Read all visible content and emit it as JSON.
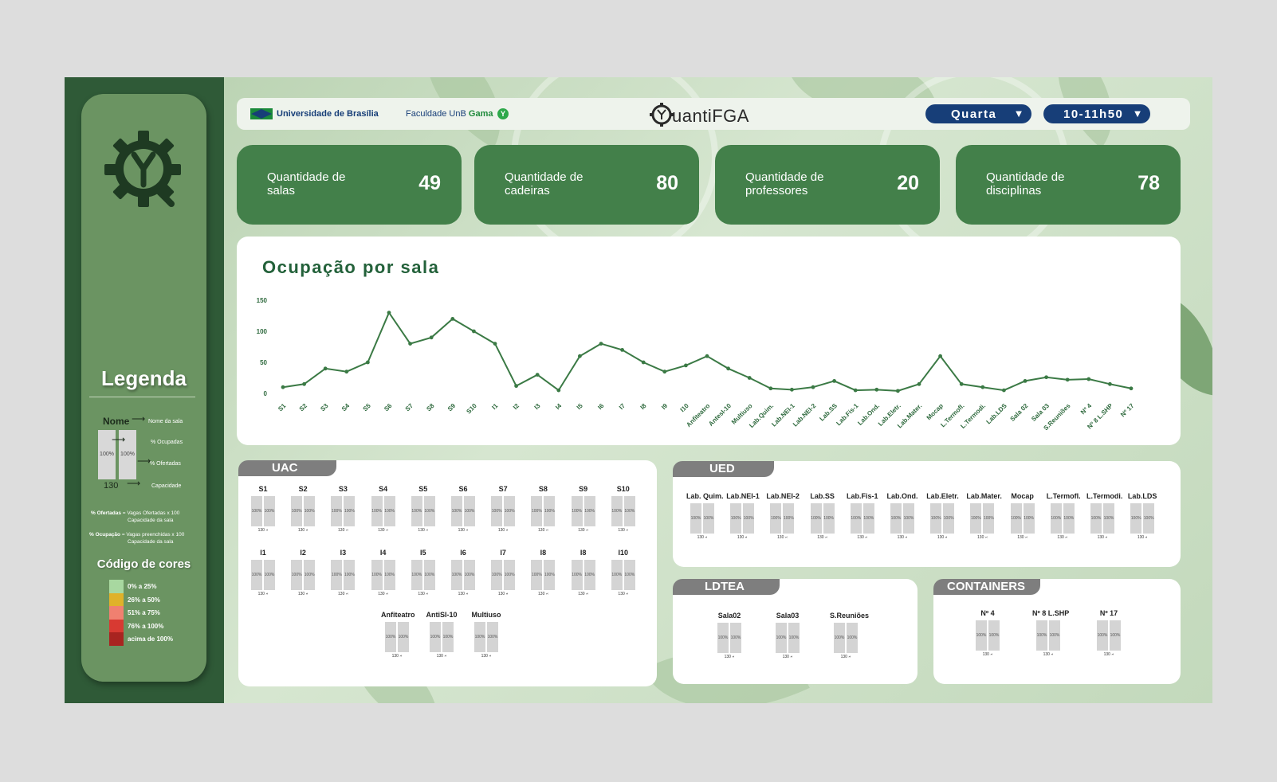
{
  "header": {
    "unb_name": "Universidade de Brasília",
    "faculdade_prefix": "Faculdade UnB",
    "faculdade_gama": "Gama",
    "app_logo_text": "uantiFGA",
    "day_select": "Quarta",
    "time_select": "10-11h50"
  },
  "stats": [
    {
      "label": "Quantidade de salas",
      "value": "49"
    },
    {
      "label": "Quantidade de cadeiras",
      "value": "80"
    },
    {
      "label": "Quantidade de professores",
      "value": "20"
    },
    {
      "label": "Quantidade de disciplinas",
      "value": "78"
    }
  ],
  "legend": {
    "title": "Legenda",
    "name_label": "Nome",
    "name_desc": "Nome da sala",
    "ocup_desc": "% Ocupadas",
    "ofert_desc": "% Ofertadas",
    "cap_desc": "Capacidade",
    "bar_value": "100%",
    "cap_value": "130",
    "formula_ofertadas_key": "% Ofertadas",
    "formula_ofertadas_num": "= Vagas Ofertadas   x 100",
    "formula_ofertadas_den": "Capacidade da sala",
    "formula_ocupacao_key": "% Ocupação",
    "formula_ocupacao_num": "= Vagas preenchidas  x 100",
    "formula_ocupacao_den": "Capacidade da sala",
    "colors_title": "Código de cores",
    "colors": [
      {
        "label": "0% a 25%",
        "color": "#a8d8a0"
      },
      {
        "label": "26% a 50%",
        "color": "#e0b22a"
      },
      {
        "label": "51% a 75%",
        "color": "#f08070"
      },
      {
        "label": "76% a 100%",
        "color": "#d83a32"
      },
      {
        "label": "acima de 100%",
        "color": "#a82420"
      }
    ]
  },
  "chart_data": {
    "type": "line",
    "title": "Ocupação por sala",
    "yticks": [
      0,
      50,
      100,
      150
    ],
    "ylim": [
      0,
      150
    ],
    "color": "#3b7a45",
    "categories": [
      "S1",
      "S2",
      "S3",
      "S4",
      "S5",
      "S6",
      "S7",
      "S8",
      "S9",
      "S10",
      "I1",
      "I2",
      "I3",
      "I4",
      "I5",
      "I6",
      "I7",
      "I8",
      "I9",
      "I10",
      "Anfiteatro",
      "AntesI-10",
      "Multiuso",
      "Lab.Quim.",
      "Lab.NEI-1",
      "Lab.NEI-2",
      "Lab.SS",
      "Lab.Fis-1",
      "Lab.Ond.",
      "Lab.Eletr.",
      "Lab.Mater.",
      "Mocap",
      "L.Termofl.",
      "L.Termodi.",
      "Lab.LDS",
      "Sala 02",
      "Sala 03",
      "S.Reuniões",
      "Nº 4",
      "Nº 8 L.SHP",
      "Nº 17"
    ],
    "values": [
      10,
      15,
      40,
      35,
      50,
      130,
      80,
      90,
      120,
      100,
      80,
      12,
      30,
      5,
      60,
      80,
      70,
      50,
      35,
      45,
      60,
      40,
      25,
      8,
      6,
      10,
      20,
      5,
      6,
      4,
      15,
      60,
      15,
      10,
      5,
      20,
      26,
      22,
      23,
      15,
      8
    ]
  },
  "uac": {
    "title": "UAC",
    "row1": [
      "S1",
      "S2",
      "S3",
      "S4",
      "S5",
      "S6",
      "S7",
      "S8",
      "S9",
      "S10"
    ],
    "row2": [
      "I1",
      "I2",
      "I3",
      "I4",
      "I5",
      "I6",
      "I7",
      "I8",
      "I8",
      "I10"
    ],
    "row3": [
      "Anfiteatro",
      "AntiSI-10",
      "Multiuso"
    ]
  },
  "ued": {
    "title": "UED",
    "rooms": [
      "Lab. Quim.",
      "Lab.NEI-1",
      "Lab.NEI-2",
      "Lab.SS",
      "Lab.Fis-1",
      "Lab.Ond.",
      "Lab.Eletr.",
      "Lab.Mater.",
      "Mocap",
      "L.Termofl.",
      "L.Termodi.",
      "Lab.LDS"
    ]
  },
  "ldtea": {
    "title": "LDTEA",
    "rooms": [
      "Sala02",
      "Sala03",
      "S.Reuniões"
    ]
  },
  "containers": {
    "title": "CONTAINERS",
    "rooms": [
      "Nº 4",
      "Nº 8 L.SHP",
      "Nº 17"
    ]
  },
  "room_bar_value": "100%",
  "room_cap_value": "130"
}
